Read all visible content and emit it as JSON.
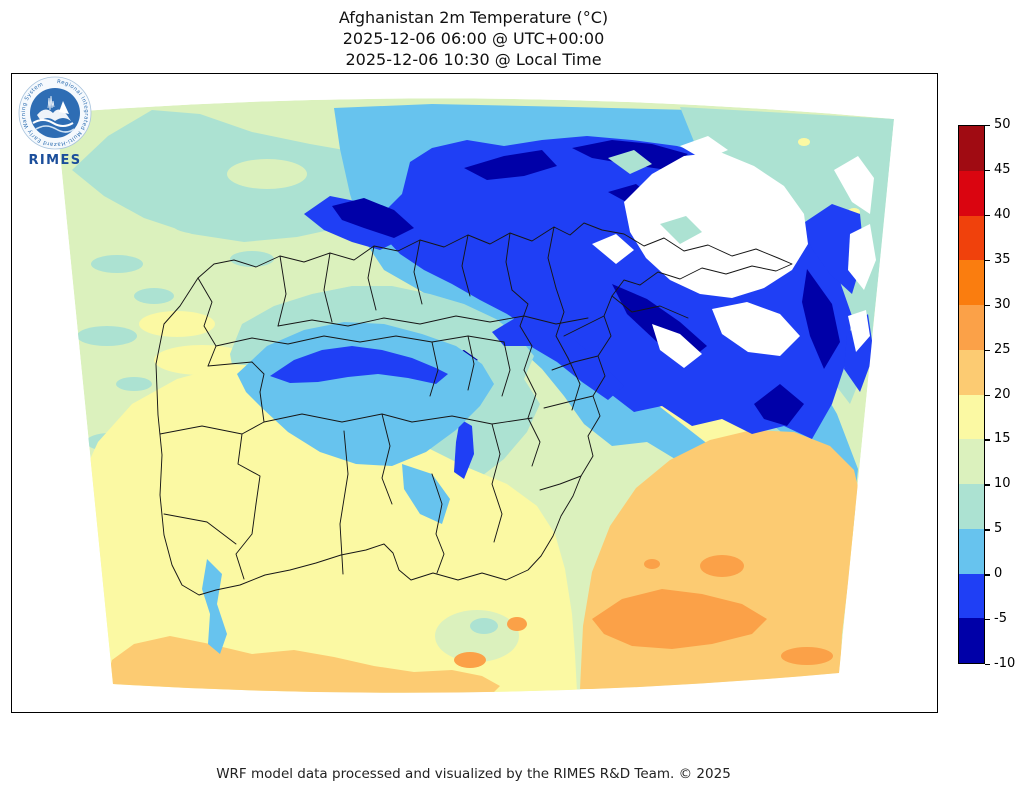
{
  "header": {
    "title": "Afghanistan 2m Temperature (°C)",
    "line_utc": "2025-12-06 06:00 @ UTC+00:00",
    "line_local": "2025-12-06 10:30 @ Local Time"
  },
  "footer": {
    "credit": "WRF model data processed and visualized by the RIMES R&D Team. © 2025"
  },
  "logo": {
    "name": "RIMES",
    "ring_text": "Regional Integrated Multi-Hazard Early Warning System"
  },
  "colorbar": {
    "tick_labels": [
      "50",
      "45",
      "40",
      "35",
      "30",
      "25",
      "20",
      "15",
      "10",
      "5",
      "0",
      "-5",
      "-10"
    ],
    "segment_colors": [
      "#A00B12",
      "#DA0510",
      "#F0410C",
      "#FA7D0F",
      "#FBA148",
      "#FCCB72",
      "#FBF9A3",
      "#DBF1BD",
      "#ACE2D2",
      "#67C3EE",
      "#1F3FF5",
      "#0000A8"
    ]
  },
  "palette": {
    "t45_50": "#A00B12",
    "t40_45": "#DA0510",
    "t35_40": "#F0410C",
    "t30_35": "#FA7D0F",
    "t25_30": "#FBA148",
    "t20_25": "#FCCB72",
    "t15_20": "#FBF9A3",
    "t10_15": "#DBF1BD",
    "t5_10": "#ACE2D2",
    "t0_5": "#67C3EE",
    "tm5_0": "#1F3FF5",
    "tm10_m5": "#0000A8",
    "below_m10": "#FFFFFF",
    "boundary": "#161616",
    "logo_blue": "#2E6DB4",
    "logo_dark_blue": "#1B4E9B"
  },
  "chart_data": {
    "type": "heatmap",
    "title": "Afghanistan 2m Temperature (°C)",
    "valid_time_utc": "2025-12-06 06:00 @ UTC+00:00",
    "valid_time_local": "2025-12-06 10:30 @ Local Time",
    "variable": "2m Temperature",
    "units": "°C",
    "colorbar_levels": [
      50,
      45,
      40,
      35,
      30,
      25,
      20,
      15,
      10,
      5,
      0,
      -5,
      -10
    ],
    "colorbar_colors_top_to_bottom": [
      "#A00B12",
      "#DA0510",
      "#F0410C",
      "#FA7D0F",
      "#FBA148",
      "#FCCB72",
      "#FBF9A3",
      "#DBF1BD",
      "#ACE2D2",
      "#67C3EE",
      "#1F3FF5",
      "#0000A8"
    ],
    "legend_position": "right",
    "field_summary": {
      "northeast_mountains": "-10 to below -10 (white areas < -10)",
      "central_highlands": "-5 to 5",
      "west_and_north": "5 to 15",
      "southwest_lowlands": "15 to 25",
      "southeast_lowlands": "20 to 30"
    }
  }
}
